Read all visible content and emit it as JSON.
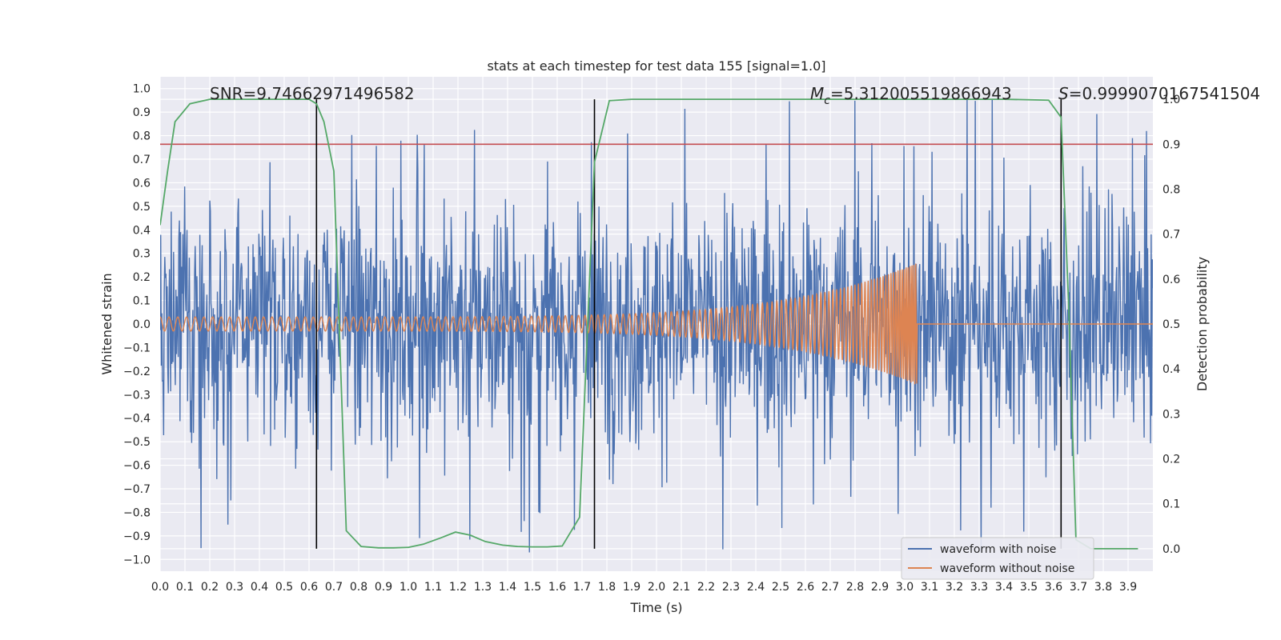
{
  "chart_data": {
    "type": "line",
    "title": "stats at each timestep for test data 155 [signal=1.0]",
    "xlabel": "Time (s)",
    "ylabel_left": "Whitened strain",
    "ylabel_right": "Detection probability",
    "xlim": [
      0.0,
      4.0
    ],
    "ylim_left": [
      -1.05,
      1.05
    ],
    "ylim_right": [
      -0.05,
      1.05
    ],
    "x_ticks": [
      0.0,
      0.1,
      0.2,
      0.3,
      0.4,
      0.5,
      0.6,
      0.7,
      0.8,
      0.9,
      1.0,
      1.1,
      1.2,
      1.3,
      1.4,
      1.5,
      1.6,
      1.7,
      1.8,
      1.9,
      2.0,
      2.1,
      2.2,
      2.3,
      2.4,
      2.5,
      2.6,
      2.7,
      2.8,
      2.9,
      3.0,
      3.1,
      3.2,
      3.3,
      3.4,
      3.5,
      3.6,
      3.7,
      3.8,
      3.9
    ],
    "x_tick_labels": [
      "0.0",
      "0.1",
      "0.2",
      "0.3",
      "0.4",
      "0.5",
      "0.6",
      "0.7",
      "0.8",
      "0.9",
      "1.0",
      "1.1",
      "1.2",
      "1.3",
      "1.4",
      "1.5",
      "1.6",
      "1.7",
      "1.8",
      "1.9",
      "2.0",
      "2.1",
      "2.2",
      "2.3",
      "2.4",
      "2.5",
      "2.6",
      "2.7",
      "2.8",
      "2.9",
      "3.0",
      "3.1",
      "3.2",
      "3.3",
      "3.4",
      "3.5",
      "3.6",
      "3.7",
      "3.8",
      "3.9"
    ],
    "y_left_ticks": [
      1.0,
      0.9,
      0.8,
      0.7,
      0.6,
      0.5,
      0.4,
      0.3,
      0.2,
      0.1,
      0.0,
      -0.1,
      -0.2,
      -0.3,
      -0.4,
      -0.5,
      -0.6,
      -0.7,
      -0.8,
      -0.9,
      -1.0
    ],
    "y_left_tick_labels": [
      "1.0",
      "0.9",
      "0.8",
      "0.7",
      "0.6",
      "0.5",
      "0.4",
      "0.3",
      "0.2",
      "0.1",
      "0.0",
      "−0.1",
      "−0.2",
      "−0.3",
      "−0.4",
      "−0.5",
      "−0.6",
      "−0.7",
      "−0.8",
      "−0.9",
      "−1.0"
    ],
    "y_right_ticks": [
      1.0,
      0.9,
      0.8,
      0.7,
      0.6,
      0.5,
      0.4,
      0.3,
      0.2,
      0.1,
      0.0
    ],
    "y_right_tick_labels": [
      "1.0",
      "0.9",
      "0.8",
      "0.7",
      "0.6",
      "0.5",
      "0.4",
      "0.3",
      "0.2",
      "0.1",
      "0.0"
    ],
    "annotations": {
      "snr": "SNR=9.74662971496582",
      "mc_symbol": "M",
      "mc_sub": "c",
      "mc_value": "=5.312005519866943",
      "s_symbol": "S",
      "s_value": "=0.9999070167541504"
    },
    "threshold": {
      "axis": "right",
      "value": 0.9,
      "color": "#c44e52"
    },
    "vertical_lines": [
      0.63,
      1.75,
      3.63
    ],
    "series": [
      {
        "name": "waveform with noise",
        "color": "#4c72b0",
        "axis": "left",
        "note": "Noisy whitened strain; dense signal, amplitude mostly within ±0.6 with peaks near ±1.0",
        "num_samples": 1700,
        "typical_amplitude": 0.3,
        "peak_amplitude": 1.0
      },
      {
        "name": "waveform without noise",
        "color": "#dd8452",
        "axis": "left",
        "note": "Chirp signal; amplitude grows from ~0.03 to ~0.26 and ends at the merger near 3.05 s, then flat at 0",
        "start_time": 0.0,
        "end_time": 3.05,
        "start_amplitude": 0.03,
        "end_amplitude": 0.26,
        "start_frequency": 28,
        "end_frequency": 130
      },
      {
        "name": "detection probability",
        "color": "#55a868",
        "axis": "right",
        "x": [
          0.0,
          0.03,
          0.06,
          0.12,
          0.2,
          0.3,
          0.4,
          0.5,
          0.6,
          0.63,
          0.66,
          0.7,
          0.75,
          0.81,
          0.88,
          0.94,
          1.0,
          1.06,
          1.13,
          1.19,
          1.25,
          1.31,
          1.38,
          1.44,
          1.5,
          1.56,
          1.62,
          1.69,
          1.75,
          1.81,
          1.9,
          2.0,
          2.2,
          2.4,
          2.6,
          2.8,
          3.0,
          3.2,
          3.4,
          3.58,
          3.63,
          3.66,
          3.69,
          3.75,
          3.81,
          3.88,
          3.94
        ],
        "values": [
          0.72,
          0.84,
          0.95,
          0.99,
          1.0,
          1.0,
          1.0,
          1.0,
          1.0,
          0.99,
          0.95,
          0.84,
          0.04,
          0.005,
          0.002,
          0.002,
          0.003,
          0.01,
          0.024,
          0.037,
          0.03,
          0.016,
          0.008,
          0.005,
          0.004,
          0.004,
          0.006,
          0.07,
          0.86,
          0.997,
          1.0,
          1.0,
          1.0,
          1.0,
          1.0,
          1.0,
          1.0,
          1.0,
          1.0,
          0.998,
          0.96,
          0.55,
          0.02,
          0.0,
          0.0,
          0.0,
          0.0
        ]
      }
    ],
    "legend": {
      "position": "bottom-right",
      "entries": [
        {
          "label": "waveform with noise",
          "color": "#4c72b0"
        },
        {
          "label": "waveform without noise",
          "color": "#dd8452"
        }
      ]
    }
  }
}
